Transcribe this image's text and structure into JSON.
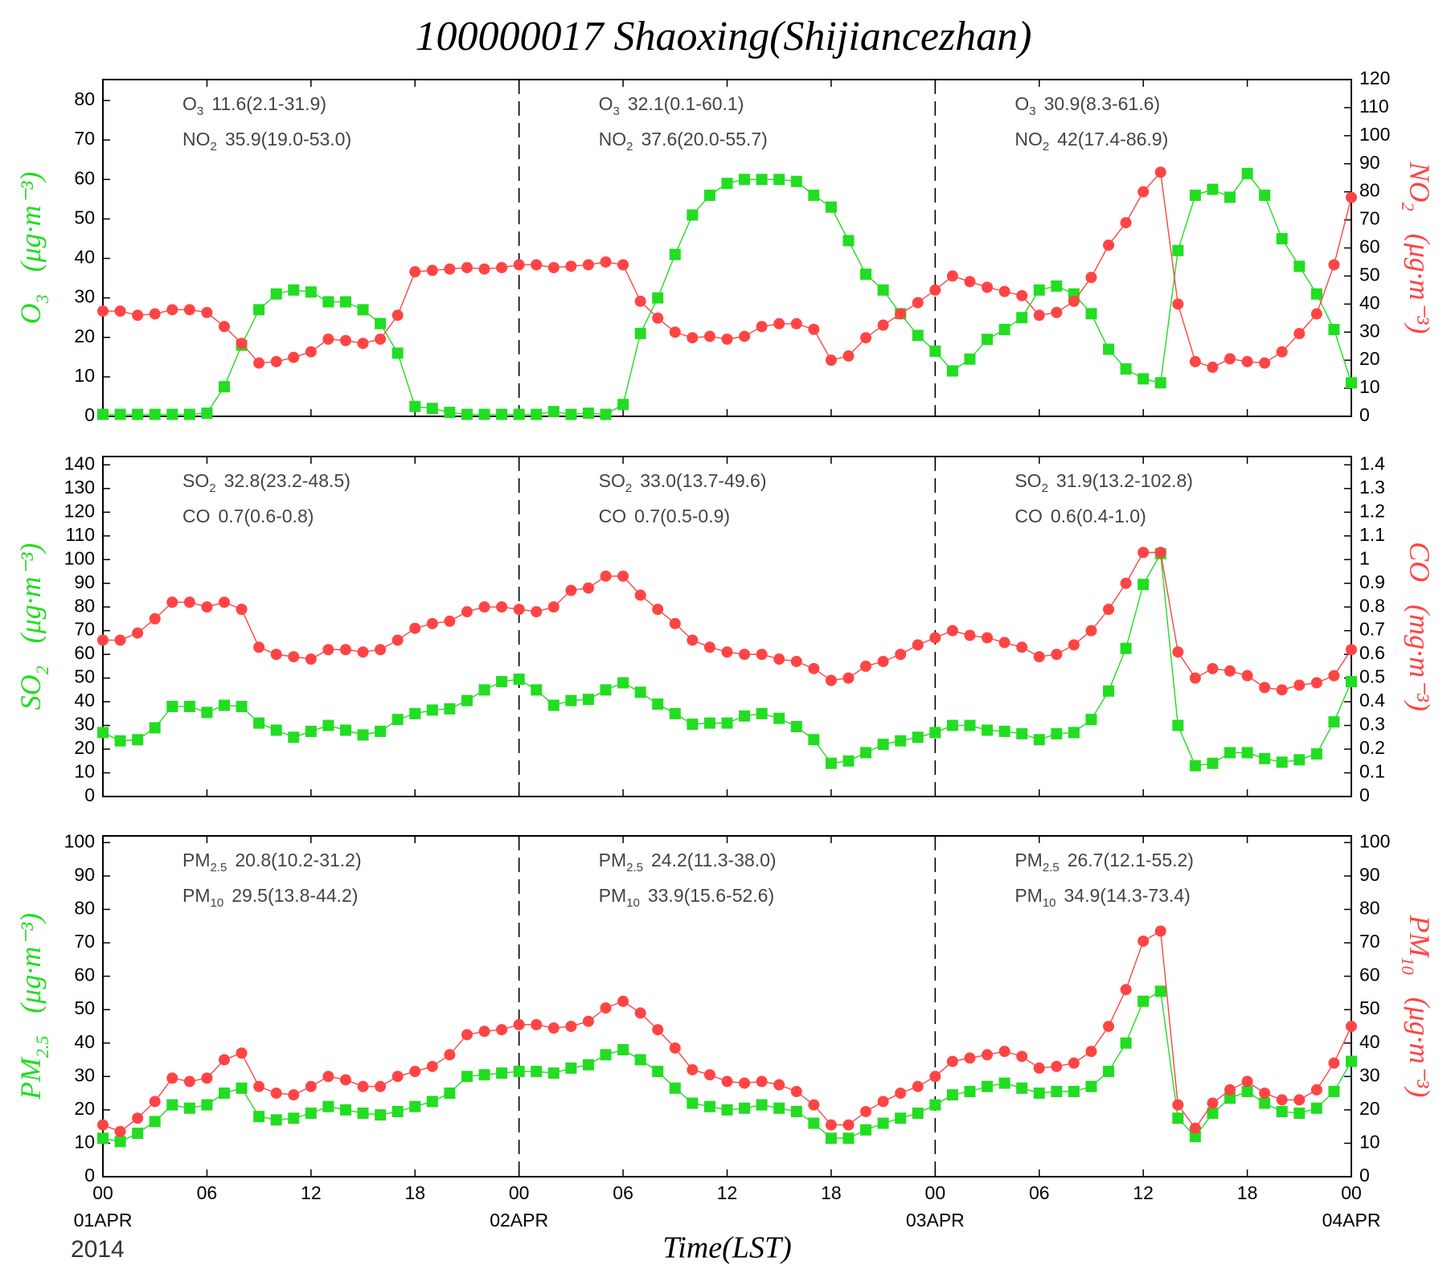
{
  "title": "100000017 Shaoxing(Shijiancezhan)",
  "chart_data": [
    {
      "type": "line",
      "x": [
        0,
        1,
        2,
        3,
        4,
        5,
        6,
        7,
        8,
        9,
        10,
        11,
        12,
        13,
        14,
        15,
        16,
        17,
        18,
        19,
        20,
        21,
        22,
        23,
        24,
        25,
        26,
        27,
        28,
        29,
        30,
        31,
        32,
        33,
        34,
        35,
        36,
        37,
        38,
        39,
        40,
        41,
        42,
        43,
        44,
        45,
        46,
        47,
        48,
        49,
        50,
        51,
        52,
        53,
        54,
        55,
        56,
        57,
        58,
        59,
        60,
        61,
        62,
        63,
        64,
        65,
        66,
        67,
        68,
        69,
        70,
        71,
        72
      ],
      "xlim": [
        0,
        72
      ],
      "xticks": [
        {
          "value": 0,
          "label": "00"
        },
        {
          "value": 6,
          "label": "06"
        },
        12,
        18,
        {
          "value": 24,
          "label": "00"
        },
        {
          "value": 30,
          "label": "06"
        },
        {
          "value": 36,
          "label": "12"
        },
        {
          "value": 42,
          "label": "18"
        },
        {
          "value": 48,
          "label": "00"
        },
        {
          "value": 54,
          "label": "06"
        },
        {
          "value": 60,
          "label": "12"
        },
        {
          "value": 66,
          "label": "18"
        },
        {
          "value": 72,
          "label": "00"
        }
      ],
      "ylim": [
        0,
        85.3
      ],
      "yticks": [
        0,
        10,
        20,
        30,
        40,
        50,
        60,
        70,
        80
      ],
      "y2lim": [
        0,
        120
      ],
      "y2ticks": [
        0,
        10,
        20,
        30,
        40,
        50,
        60,
        70,
        80,
        90,
        100,
        110,
        120
      ],
      "ylabel": {
        "name": "O",
        "sub": "3",
        "unit": "(μg·m⁻³)"
      },
      "y2label": {
        "name": "NO",
        "sub": "2",
        "unit": "(μg·m⁻³)"
      },
      "series": [
        {
          "axis": "y",
          "marker": "square",
          "color": "#22dd22",
          "values": [
            0.5,
            0.5,
            0.5,
            0.5,
            0.5,
            0.5,
            0.8,
            7.5,
            18,
            27,
            31,
            32,
            31.5,
            29,
            29,
            27,
            23.5,
            16,
            2.5,
            2,
            1,
            0.5,
            0.5,
            0.5,
            0.5,
            0.5,
            1.2,
            0.5,
            0.8,
            0.5,
            3,
            21,
            30,
            41,
            51,
            56,
            59,
            60,
            60,
            60,
            59.5,
            56,
            53,
            44.5,
            36,
            32,
            26,
            20.5,
            16.5,
            11.5,
            14.5,
            19.5,
            22,
            25,
            32,
            33,
            31,
            26,
            17,
            12,
            9.5,
            8.5,
            42,
            56,
            57.5,
            55.5,
            61.5,
            56,
            45,
            38,
            31,
            22,
            8.5
          ]
        },
        {
          "axis": "y2",
          "marker": "circle",
          "color": "#ff4444",
          "values": [
            37.5,
            37.5,
            36,
            36.5,
            38,
            38,
            37,
            32,
            26,
            19,
            19.5,
            21,
            23,
            27.5,
            27,
            26,
            27.5,
            36,
            51.5,
            52,
            52.5,
            53,
            52.5,
            53,
            54,
            54,
            53,
            53.5,
            54,
            55,
            54,
            41,
            35,
            30,
            28,
            28.5,
            27.5,
            28.5,
            32,
            33,
            33,
            31,
            20,
            21.5,
            28,
            32.5,
            36.5,
            40.5,
            45,
            50,
            48,
            46,
            44.5,
            43,
            36,
            37,
            41,
            49.5,
            61,
            69,
            80,
            87,
            40,
            19.5,
            17.5,
            20.5,
            19.5,
            19,
            23,
            29.5,
            36.5,
            54,
            78
          ]
        }
      ],
      "annotations": [
        [
          {
            "name": "O",
            "sub": "3",
            "stats": "11.6(2.1-31.9)"
          },
          {
            "name": "NO",
            "sub": "2",
            "stats": "35.9(19.0-53.0)"
          }
        ],
        [
          {
            "name": "O",
            "sub": "3",
            "stats": "32.1(0.1-60.1)"
          },
          {
            "name": "NO",
            "sub": "2",
            "stats": "37.6(20.0-55.7)"
          }
        ],
        [
          {
            "name": "O",
            "sub": "3",
            "stats": "30.9(8.3-61.6)"
          },
          {
            "name": "NO",
            "sub": "2",
            "stats": "42(17.4-86.9)"
          }
        ]
      ]
    },
    {
      "type": "line",
      "x": [
        0,
        1,
        2,
        3,
        4,
        5,
        6,
        7,
        8,
        9,
        10,
        11,
        12,
        13,
        14,
        15,
        16,
        17,
        18,
        19,
        20,
        21,
        22,
        23,
        24,
        25,
        26,
        27,
        28,
        29,
        30,
        31,
        32,
        33,
        34,
        35,
        36,
        37,
        38,
        39,
        40,
        41,
        42,
        43,
        44,
        45,
        46,
        47,
        48,
        49,
        50,
        51,
        52,
        53,
        54,
        55,
        56,
        57,
        58,
        59,
        60,
        61,
        62,
        63,
        64,
        65,
        66,
        67,
        68,
        69,
        70,
        71,
        72
      ],
      "xlim": [
        0,
        72
      ],
      "xticks": [
        {
          "value": 0,
          "label": "00"
        },
        {
          "value": 6,
          "label": "06"
        },
        12,
        18,
        {
          "value": 24,
          "label": "00"
        },
        {
          "value": 30,
          "label": "06"
        },
        {
          "value": 36,
          "label": "12"
        },
        {
          "value": 42,
          "label": "18"
        },
        {
          "value": 48,
          "label": "00"
        },
        {
          "value": 54,
          "label": "06"
        },
        {
          "value": 60,
          "label": "12"
        },
        {
          "value": 66,
          "label": "18"
        },
        {
          "value": 72,
          "label": "00"
        }
      ],
      "ylim": [
        0,
        143.5
      ],
      "yticks": [
        0,
        10,
        20,
        30,
        40,
        50,
        60,
        70,
        80,
        90,
        100,
        110,
        120,
        130,
        140
      ],
      "y2lim": [
        0,
        1.435
      ],
      "y2ticks": [
        0,
        0.1,
        0.2,
        0.3,
        0.4,
        0.5,
        0.6,
        0.7,
        0.8,
        0.9,
        1,
        1.1,
        1.2,
        1.3,
        1.4
      ],
      "ylabel": {
        "name": "SO",
        "sub": "2",
        "unit": "(μg·m⁻³)"
      },
      "y2label": {
        "name": "CO",
        "sub": "",
        "unit": "(mg·m⁻³)"
      },
      "series": [
        {
          "axis": "y",
          "marker": "square",
          "color": "#22dd22",
          "values": [
            27,
            23.5,
            24,
            29,
            38,
            38,
            35.5,
            38.5,
            38,
            31,
            28,
            25,
            27.5,
            30,
            28,
            26,
            27.5,
            32.5,
            35,
            36.5,
            37,
            40.5,
            45,
            48.5,
            49.5,
            45,
            38.5,
            40.5,
            41,
            45,
            48,
            44,
            39,
            35,
            30.5,
            31,
            31,
            34,
            35,
            33,
            29.5,
            24,
            14,
            15,
            18.5,
            22,
            23.5,
            25,
            27,
            30,
            30,
            28,
            27.5,
            26.5,
            24,
            26.5,
            27,
            32.5,
            44.5,
            62.5,
            89.5,
            102.5,
            30,
            13,
            14,
            18.5,
            18.5,
            16,
            14.5,
            15.5,
            18,
            31.5,
            48.5
          ]
        },
        {
          "axis": "y2",
          "marker": "circle",
          "color": "#ff4444",
          "values": [
            0.66,
            0.66,
            0.69,
            0.75,
            0.82,
            0.82,
            0.8,
            0.82,
            0.79,
            0.63,
            0.6,
            0.59,
            0.58,
            0.62,
            0.62,
            0.61,
            0.62,
            0.66,
            0.71,
            0.73,
            0.74,
            0.78,
            0.8,
            0.8,
            0.79,
            0.78,
            0.8,
            0.87,
            0.88,
            0.93,
            0.93,
            0.85,
            0.79,
            0.73,
            0.66,
            0.63,
            0.61,
            0.6,
            0.6,
            0.58,
            0.57,
            0.54,
            0.49,
            0.5,
            0.55,
            0.57,
            0.6,
            0.64,
            0.67,
            0.7,
            0.68,
            0.67,
            0.65,
            0.63,
            0.59,
            0.6,
            0.64,
            0.7,
            0.79,
            0.9,
            1.03,
            1.03,
            0.61,
            0.5,
            0.54,
            0.53,
            0.51,
            0.46,
            0.45,
            0.47,
            0.48,
            0.51,
            0.62
          ]
        }
      ],
      "annotations": [
        [
          {
            "name": "SO",
            "sub": "2",
            "stats": "32.8(23.2-48.5)"
          },
          {
            "name": "CO",
            "sub": "",
            "stats": "0.7(0.6-0.8)"
          }
        ],
        [
          {
            "name": "SO",
            "sub": "2",
            "stats": "33.0(13.7-49.6)"
          },
          {
            "name": "CO",
            "sub": "",
            "stats": "0.7(0.5-0.9)"
          }
        ],
        [
          {
            "name": "SO",
            "sub": "2",
            "stats": "31.9(13.2-102.8)"
          },
          {
            "name": "CO",
            "sub": "",
            "stats": "0.6(0.4-1.0)"
          }
        ]
      ]
    },
    {
      "type": "line",
      "x": [
        0,
        1,
        2,
        3,
        4,
        5,
        6,
        7,
        8,
        9,
        10,
        11,
        12,
        13,
        14,
        15,
        16,
        17,
        18,
        19,
        20,
        21,
        22,
        23,
        24,
        25,
        26,
        27,
        28,
        29,
        30,
        31,
        32,
        33,
        34,
        35,
        36,
        37,
        38,
        39,
        40,
        41,
        42,
        43,
        44,
        45,
        46,
        47,
        48,
        49,
        50,
        51,
        52,
        53,
        54,
        55,
        56,
        57,
        58,
        59,
        60,
        61,
        62,
        63,
        64,
        65,
        66,
        67,
        68,
        69,
        70,
        71,
        72
      ],
      "xlim": [
        0,
        72
      ],
      "xticks": [
        {
          "value": 0,
          "label": "00"
        },
        {
          "value": 6,
          "label": "06"
        },
        12,
        18,
        {
          "value": 24,
          "label": "00"
        },
        {
          "value": 30,
          "label": "06"
        },
        {
          "value": 36,
          "label": "12"
        },
        {
          "value": 42,
          "label": "18"
        },
        {
          "value": 48,
          "label": "00"
        },
        {
          "value": 54,
          "label": "06"
        },
        {
          "value": 60,
          "label": "12"
        },
        {
          "value": 66,
          "label": "18"
        },
        {
          "value": 72,
          "label": "00"
        }
      ],
      "date_labels": [
        {
          "value": 0,
          "label": "01APR"
        },
        {
          "value": 24,
          "label": "02APR"
        },
        {
          "value": 48,
          "label": "03APR"
        },
        {
          "value": 72,
          "label": "04APR"
        }
      ],
      "year": "2014",
      "xlabel": "Time(LST)",
      "ylim": [
        0,
        102
      ],
      "yticks": [
        0,
        10,
        20,
        30,
        40,
        50,
        60,
        70,
        80,
        90,
        100
      ],
      "y2lim": [
        0,
        102
      ],
      "y2ticks": [
        0,
        10,
        20,
        30,
        40,
        50,
        60,
        70,
        80,
        90,
        100
      ],
      "ylabel": {
        "name": "PM",
        "sub": "2.5",
        "unit": "(μg·m⁻³)"
      },
      "y2label": {
        "name": "PM",
        "sub": "10",
        "unit": "(μg·m⁻³)"
      },
      "series": [
        {
          "axis": "y",
          "marker": "square",
          "color": "#22dd22",
          "values": [
            11.5,
            10.5,
            13,
            16.5,
            21.5,
            20.5,
            21.5,
            25,
            26.5,
            18,
            17,
            17.5,
            19,
            21,
            20,
            19,
            18.5,
            19.5,
            21,
            22.5,
            25,
            30,
            30.5,
            31,
            31.5,
            31.5,
            31,
            32.5,
            33.5,
            36.5,
            38,
            35,
            31.5,
            26.5,
            22,
            21,
            20,
            20.5,
            21.5,
            20.5,
            19.5,
            16,
            11.5,
            11.5,
            14,
            16,
            17.5,
            19,
            21.5,
            24.5,
            25.5,
            27,
            28,
            26.5,
            25,
            25.5,
            25.5,
            27,
            31.5,
            40,
            52.5,
            55.5,
            17.5,
            12,
            19,
            23.5,
            25.5,
            22,
            19.5,
            19,
            20.5,
            25.5,
            34.5
          ]
        },
        {
          "axis": "y2",
          "marker": "circle",
          "color": "#ff4444",
          "values": [
            15.5,
            13.5,
            17.5,
            22.5,
            29.5,
            28.5,
            29.5,
            35,
            37,
            27,
            25,
            24.5,
            27,
            30,
            29,
            27,
            27,
            30,
            31.5,
            33,
            36.5,
            42.5,
            43.5,
            44,
            45.5,
            45.5,
            44.5,
            45,
            46.5,
            50.5,
            52.5,
            49,
            44,
            38.5,
            32,
            30.5,
            28.5,
            28,
            28.5,
            27.5,
            25.5,
            21.5,
            15.5,
            15.5,
            19.5,
            22.5,
            25,
            27,
            30,
            34.5,
            35.5,
            36.5,
            37.5,
            36,
            32.5,
            33,
            34,
            37.5,
            45,
            56,
            70.5,
            73.5,
            21.5,
            14.5,
            22,
            26,
            28.5,
            25,
            23,
            23,
            26,
            34,
            45
          ]
        }
      ],
      "annotations": [
        [
          {
            "name": "PM",
            "sub": "2.5",
            "stats": "20.8(10.2-31.2)"
          },
          {
            "name": "PM",
            "sub": "10",
            "stats": "29.5(13.8-44.2)"
          }
        ],
        [
          {
            "name": "PM",
            "sub": "2.5",
            "stats": "24.2(11.3-38.0)"
          },
          {
            "name": "PM",
            "sub": "10",
            "stats": "33.9(15.6-52.6)"
          }
        ],
        [
          {
            "name": "PM",
            "sub": "2.5",
            "stats": "26.7(12.1-55.2)"
          },
          {
            "name": "PM",
            "sub": "10",
            "stats": "34.9(14.3-73.4)"
          }
        ]
      ]
    }
  ]
}
